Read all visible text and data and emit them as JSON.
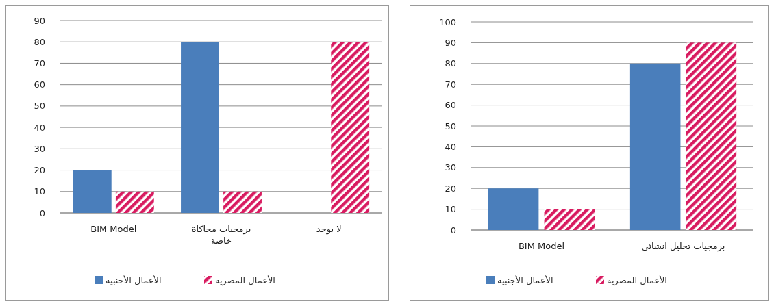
{
  "chart_data": [
    {
      "type": "bar",
      "categories": [
        "BIM Model",
        "برمجيات محاكاة خاصة",
        "لا يوجد"
      ],
      "series": [
        {
          "name": "الأعمال الأجنبية",
          "color": "#4a7ebb",
          "values": [
            20,
            80,
            0
          ]
        },
        {
          "name": "الأعمال المصرية",
          "color": "#d81b60",
          "values": [
            10,
            10,
            80
          ]
        }
      ],
      "ylim": [
        0,
        90
      ],
      "yticks": [
        0,
        10,
        20,
        30,
        40,
        50,
        60,
        70,
        80,
        90
      ],
      "grid": "y",
      "legend": "bottom"
    },
    {
      "type": "bar",
      "categories": [
        "BIM Model",
        "برمجيات تحليل انشائي"
      ],
      "series": [
        {
          "name": "الأعمال الأجنبية",
          "color": "#4a7ebb",
          "values": [
            20,
            80
          ]
        },
        {
          "name": "الأعمال المصرية",
          "color": "#d81b60",
          "values": [
            10,
            90
          ]
        }
      ],
      "ylim": [
        0,
        100
      ],
      "yticks": [
        0,
        10,
        20,
        30,
        40,
        50,
        60,
        70,
        80,
        90,
        100
      ],
      "grid": "y",
      "legend": "bottom"
    }
  ]
}
